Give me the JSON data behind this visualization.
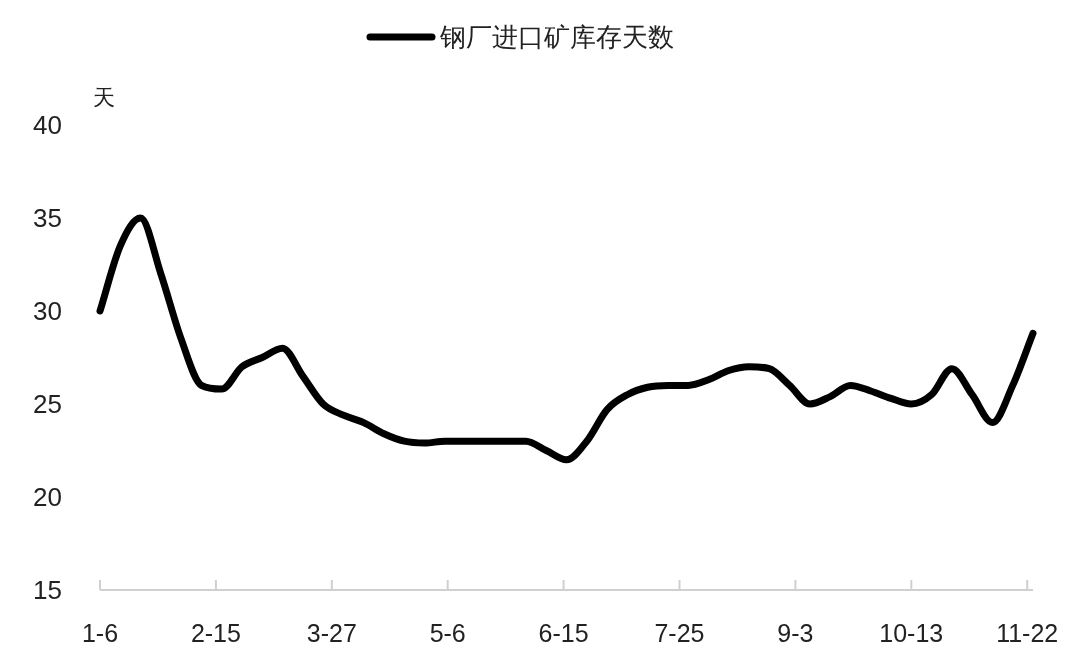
{
  "chart_data": {
    "type": "line",
    "ylabel": "天",
    "legend": "top",
    "grid": false,
    "x": [
      "--01-06",
      "--01-13",
      "--01-20",
      "--01-27",
      "--02-03",
      "--02-10",
      "--02-17",
      "--02-24",
      "--03-03",
      "--03-10",
      "--03-17",
      "--03-24",
      "--03-31",
      "--04-07",
      "--04-14",
      "--04-21",
      "--04-28",
      "--05-05",
      "--05-12",
      "--05-19",
      "--05-26",
      "--06-02",
      "--06-09",
      "--06-16",
      "--06-23",
      "--06-30",
      "--07-07",
      "--07-14",
      "--07-21",
      "--07-28",
      "--08-04",
      "--08-11",
      "--08-18",
      "--08-25",
      "--09-01",
      "--09-08",
      "--09-15",
      "--09-22",
      "--09-29",
      "--10-06",
      "--10-13",
      "--10-20",
      "--10-27",
      "--11-03",
      "--11-10",
      "--11-17",
      "--11-24"
    ],
    "series": [
      {
        "name": "钢厂进口矿库存天数",
        "color": "#000000",
        "values": [
          30.0,
          33.5,
          35.0,
          32.0,
          28.5,
          26.0,
          25.8,
          27.0,
          27.5,
          28.0,
          26.5,
          25.0,
          24.4,
          24.0,
          23.4,
          23.0,
          22.9,
          23.0,
          23.0,
          23.0,
          23.0,
          23.0,
          22.5,
          22.0,
          23.0,
          24.7,
          25.5,
          25.9,
          26.0,
          26.0,
          26.3,
          26.8,
          27.0,
          26.9,
          26.0,
          25.0,
          25.4,
          26.0,
          25.7,
          25.3,
          25.0,
          25.5,
          26.9,
          25.5,
          24.0,
          26.0,
          28.8
        ]
      }
    ],
    "xlim": [
      "--01-06",
      "--11-24"
    ],
    "xticks": [
      {
        "value": "--01-06",
        "label": "1-6"
      },
      {
        "value": "--02-15",
        "label": "2-15"
      },
      {
        "value": "--03-27",
        "label": "3-27"
      },
      {
        "value": "--05-06",
        "label": "5-6"
      },
      {
        "value": "--06-15",
        "label": "6-15"
      },
      {
        "value": "--07-25",
        "label": "7-25"
      },
      {
        "value": "--09-03",
        "label": "9-3"
      },
      {
        "value": "--10-13",
        "label": "10-13"
      },
      {
        "value": "--11-22",
        "label": "11-22"
      }
    ],
    "ylim": [
      15,
      40
    ],
    "yticks": [
      15,
      20,
      25,
      30,
      35,
      40
    ],
    "marker": "none",
    "line_style": "solid"
  }
}
